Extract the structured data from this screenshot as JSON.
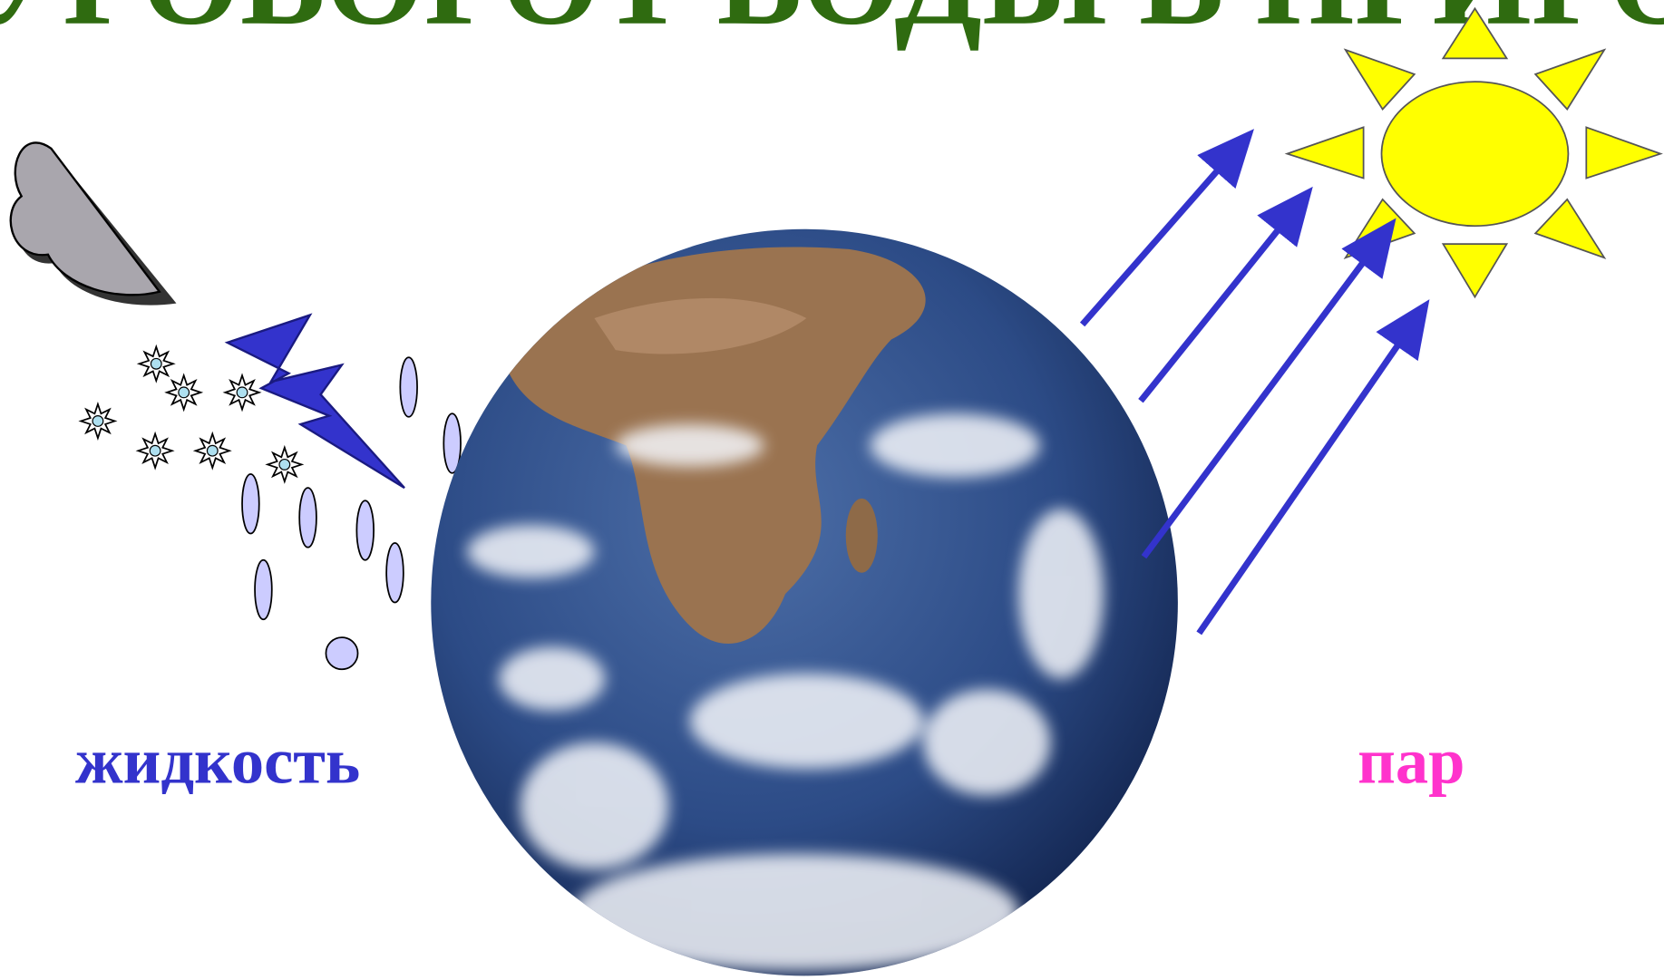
{
  "title": "КРУГОВОРОТ ВОДЫ В ПРИРОДЕ",
  "labels": {
    "liquid": "жидкость",
    "vapor": "пар"
  }
}
